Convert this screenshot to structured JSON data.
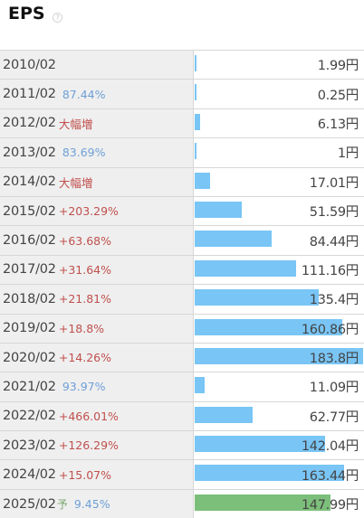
{
  "title": "EPS",
  "help_icon": "?",
  "rows": [
    {
      "year": "2010/02",
      "change": "",
      "dir": "",
      "value": 1.99,
      "value_text": "1.99円",
      "forecast": false
    },
    {
      "year": "2011/02",
      "change": "87.44%",
      "dir": "down",
      "value": 0.25,
      "value_text": "0.25円",
      "forecast": false
    },
    {
      "year": "2012/02",
      "change": "大幅増",
      "dir": "up",
      "value": 6.13,
      "value_text": "6.13円",
      "forecast": false
    },
    {
      "year": "2013/02",
      "change": "83.69%",
      "dir": "down",
      "value": 1,
      "value_text": "1円",
      "forecast": false
    },
    {
      "year": "2014/02",
      "change": "大幅増",
      "dir": "up",
      "value": 17.01,
      "value_text": "17.01円",
      "forecast": false
    },
    {
      "year": "2015/02",
      "change": "+203.29%",
      "dir": "up",
      "value": 51.59,
      "value_text": "51.59円",
      "forecast": false
    },
    {
      "year": "2016/02",
      "change": "+63.68%",
      "dir": "up",
      "value": 84.44,
      "value_text": "84.44円",
      "forecast": false
    },
    {
      "year": "2017/02",
      "change": "+31.64%",
      "dir": "up",
      "value": 111.16,
      "value_text": "111.16円",
      "forecast": false
    },
    {
      "year": "2018/02",
      "change": "+21.81%",
      "dir": "up",
      "value": 135.4,
      "value_text": "135.4円",
      "forecast": false
    },
    {
      "year": "2019/02",
      "change": "+18.8%",
      "dir": "up",
      "value": 160.86,
      "value_text": "160.86円",
      "forecast": false
    },
    {
      "year": "2020/02",
      "change": "+14.26%",
      "dir": "up",
      "value": 183.8,
      "value_text": "183.8円",
      "forecast": false
    },
    {
      "year": "2021/02",
      "change": "93.97%",
      "dir": "down",
      "value": 11.09,
      "value_text": "11.09円",
      "forecast": false
    },
    {
      "year": "2022/02",
      "change": "+466.01%",
      "dir": "up",
      "value": 62.77,
      "value_text": "62.77円",
      "forecast": false
    },
    {
      "year": "2023/02",
      "change": "+126.29%",
      "dir": "up",
      "value": 142.04,
      "value_text": "142.04円",
      "forecast": false
    },
    {
      "year": "2024/02",
      "change": "+15.07%",
      "dir": "up",
      "value": 163.44,
      "value_text": "163.44円",
      "forecast": false
    },
    {
      "year": "2025/02",
      "change": "9.45%",
      "dir": "down",
      "value": 147.99,
      "value_text": "147.99円",
      "forecast": true,
      "forecast_mark": "予"
    }
  ],
  "colors": {
    "bar": "#79c5f5",
    "forecast_bar": "#7cbf7a",
    "up": "#c0504d",
    "down": "#6e9fd6"
  }
}
